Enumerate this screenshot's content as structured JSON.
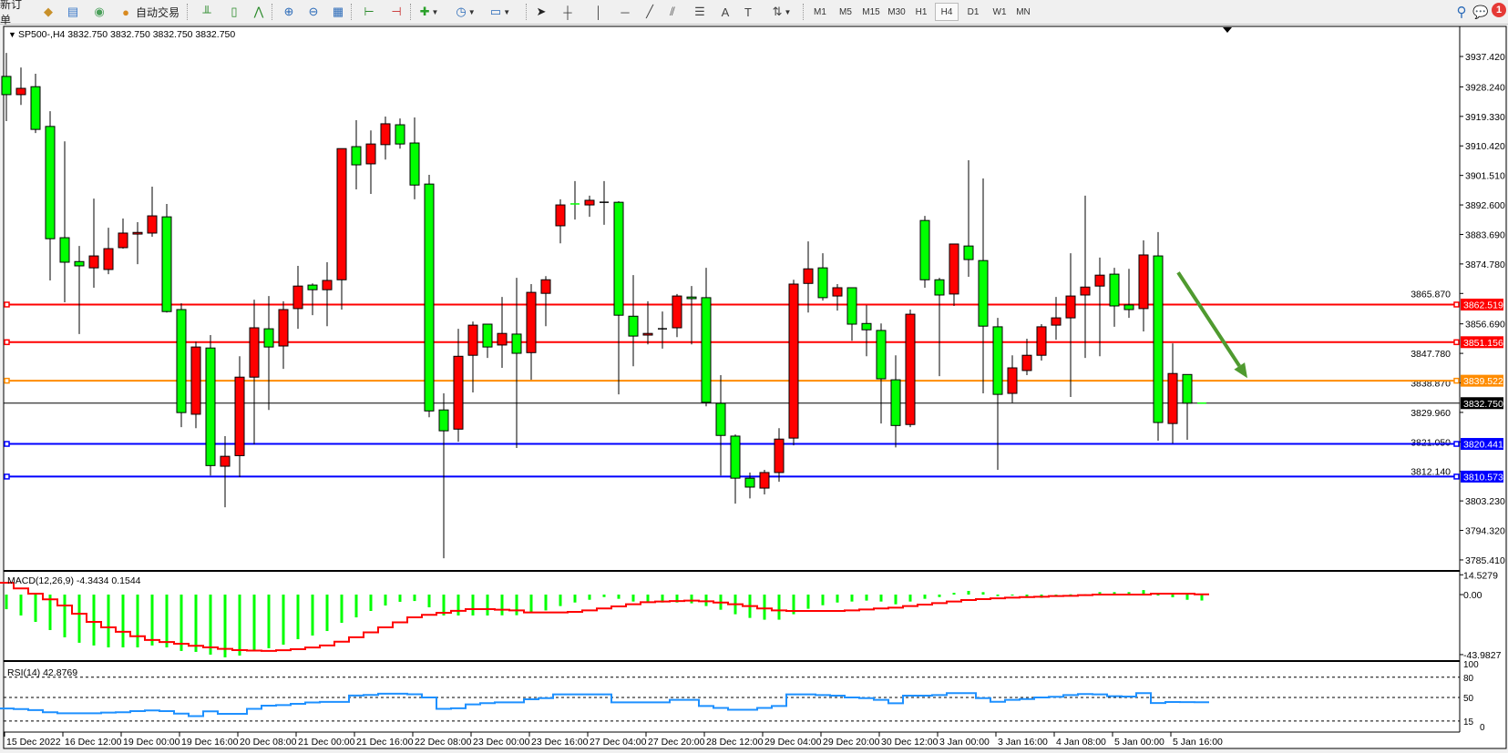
{
  "toolbar": {
    "new_order_label": "新订单",
    "auto_trading_label": "自动交易",
    "buttons": [
      {
        "icon": "market-watch-icon",
        "glyph": "◆",
        "color": "#c8902a"
      },
      {
        "icon": "data-window-icon",
        "glyph": "▤",
        "color": "#3a78c8"
      },
      {
        "icon": "navigator-icon",
        "glyph": "◉",
        "color": "#4aa05a"
      },
      {
        "icon": "auto-trading-icon",
        "glyph": "●",
        "color": "#d88a20"
      },
      {
        "icon": "bar-chart-icon",
        "glyph": "╨",
        "color": "#2a8a2a"
      },
      {
        "icon": "candlestick-chart-icon",
        "glyph": "▯",
        "color": "#2a8a2a"
      },
      {
        "icon": "line-chart-icon",
        "glyph": "⋀",
        "color": "#2a8a2a"
      },
      {
        "icon": "zoom-in-icon",
        "glyph": "⊕",
        "color": "#2a6ab8"
      },
      {
        "icon": "zoom-out-icon",
        "glyph": "⊖",
        "color": "#2a6ab8"
      },
      {
        "icon": "tile-windows-icon",
        "glyph": "▦",
        "color": "#2a6ab8"
      },
      {
        "icon": "auto-scroll-icon",
        "glyph": "⊢",
        "color": "#2a8a2a"
      },
      {
        "icon": "chart-shift-icon",
        "glyph": "⊣",
        "color": "#c82a2a"
      },
      {
        "icon": "indicators-icon",
        "glyph": "✚",
        "color": "#2aa02a",
        "dropdown": true
      },
      {
        "icon": "periods-clock-icon",
        "glyph": "◷",
        "color": "#2a6ab8",
        "dropdown": true
      },
      {
        "icon": "templates-icon",
        "glyph": "▭",
        "color": "#2a6ab8",
        "dropdown": true
      },
      {
        "icon": "cursor-icon",
        "glyph": "➤",
        "color": "#222"
      },
      {
        "icon": "crosshair-icon",
        "glyph": "┼",
        "color": "#444"
      },
      {
        "icon": "vertical-line-icon",
        "glyph": "│",
        "color": "#444"
      },
      {
        "icon": "horizontal-line-icon",
        "glyph": "─",
        "color": "#444"
      },
      {
        "icon": "trendline-icon",
        "glyph": "╱",
        "color": "#444"
      },
      {
        "icon": "equidistant-channel-icon",
        "glyph": "⫽",
        "color": "#444"
      },
      {
        "icon": "fibonacci-icon",
        "glyph": "☰",
        "color": "#444"
      },
      {
        "icon": "text-icon",
        "glyph": "A",
        "color": "#444"
      },
      {
        "icon": "text-label-icon",
        "glyph": "T",
        "color": "#444"
      },
      {
        "icon": "arrows-icon",
        "glyph": "⇅",
        "color": "#444",
        "dropdown": true
      }
    ],
    "timeframes": [
      "M1",
      "M5",
      "M15",
      "M30",
      "H1",
      "H4",
      "D1",
      "W1",
      "MN"
    ],
    "active_timeframe": "H4",
    "search_icon": "search-icon",
    "notification_icon": "notification-icon",
    "notification_count": "1"
  },
  "chart_data": {
    "type": "candlestick",
    "title": "SP500-,H4  3832.750 3832.750 3832.750 3832.750",
    "symbol": "SP500-",
    "timeframe": "H4",
    "bull_color": "#ff0000",
    "bear_color": "#00ff00",
    "ylim": [
      3782.1,
      3946.5
    ],
    "price_ticks": [
      "3937.420",
      "3928.240",
      "3919.330",
      "3910.420",
      "3901.510",
      "3892.600",
      "3883.690",
      "3874.780",
      "3865.870",
      "3856.690",
      "3847.780",
      "3838.870",
      "3829.960",
      "3821.050",
      "3812.140",
      "3803.230",
      "3794.320",
      "3785.410"
    ],
    "bid_price": {
      "value": 3832.75,
      "label": "3832.750",
      "color": "#000000"
    },
    "levels": [
      {
        "value": 3862.519,
        "label": "3862.519",
        "color": "#ff0000"
      },
      {
        "value": 3851.156,
        "label": "3851.156",
        "color": "#ff0000"
      },
      {
        "value": 3839.522,
        "label": "3839.522",
        "color": "#ff8c00"
      },
      {
        "value": 3820.441,
        "label": "3820.441",
        "color": "#0000ff"
      },
      {
        "value": 3810.573,
        "label": "3810.573",
        "color": "#0000ff"
      }
    ],
    "annotation_arrow": {
      "color": "#4f9a2f",
      "direction": "down",
      "from_price": 3872.2,
      "to_price": 3840.3
    },
    "date_labels": [
      "15 Dec 2022",
      "16 Dec 12:00",
      "19 Dec 00:00",
      "19 Dec 16:00",
      "20 Dec 08:00",
      "21 Dec 00:00",
      "21 Dec 16:00",
      "22 Dec 08:00",
      "23 Dec 00:00",
      "23 Dec 16:00",
      "27 Dec 04:00",
      "27 Dec 20:00",
      "28 Dec 12:00",
      "29 Dec 04:00",
      "29 Dec 20:00",
      "30 Dec 12:00",
      "3 Jan 00:00",
      "3 Jan 16:00",
      "4 Jan 08:00",
      "5 Jan 00:00",
      "5 Jan 16:00"
    ],
    "ohlc": [
      [
        3931.4,
        3938.5,
        3917.9,
        3925.9
      ],
      [
        3925.9,
        3934.1,
        3922.8,
        3927.8
      ],
      [
        3928.3,
        3932.2,
        3914.3,
        3915.4
      ],
      [
        3916.3,
        3920.9,
        3869.8,
        3882.4
      ],
      [
        3882.7,
        3911.8,
        3863.2,
        3875.3
      ],
      [
        3875.5,
        3880.2,
        3853.6,
        3874.2
      ],
      [
        3873.6,
        3894.5,
        3867.6,
        3877.2
      ],
      [
        3873.1,
        3885.7,
        3871.7,
        3879.4
      ],
      [
        3879.7,
        3888.5,
        3879.4,
        3884.1
      ],
      [
        3883.8,
        3887.4,
        3874.7,
        3884.3
      ],
      [
        3884.1,
        3898.1,
        3883.0,
        3889.3
      ],
      [
        3889.0,
        3892.9,
        3860.1,
        3860.4
      ],
      [
        3861.0,
        3862.9,
        3825.5,
        3829.9
      ],
      [
        3829.4,
        3851.3,
        3825.2,
        3849.7
      ],
      [
        3849.4,
        3853.3,
        3810.9,
        3813.9
      ],
      [
        3813.7,
        3822.8,
        3801.3,
        3816.7
      ],
      [
        3816.9,
        3846.9,
        3810.4,
        3840.6
      ],
      [
        3840.6,
        3864.0,
        3820.3,
        3855.5
      ],
      [
        3855.2,
        3865.1,
        3830.7,
        3849.7
      ],
      [
        3850.0,
        3863.5,
        3843.1,
        3861.0
      ],
      [
        3861.3,
        3874.2,
        3855.2,
        3868.1
      ],
      [
        3868.4,
        3868.9,
        3859.3,
        3867.0
      ],
      [
        3867.0,
        3875.3,
        3856.0,
        3869.8
      ],
      [
        3870.0,
        3909.6,
        3861.0,
        3909.6
      ],
      [
        3910.2,
        3918.2,
        3897.3,
        3904.7
      ],
      [
        3905.0,
        3915.1,
        3895.9,
        3911.0
      ],
      [
        3910.8,
        3919.3,
        3906.3,
        3917.1
      ],
      [
        3916.8,
        3918.7,
        3909.6,
        3911.0
      ],
      [
        3911.3,
        3919.0,
        3894.3,
        3898.6
      ],
      [
        3898.9,
        3901.7,
        3828.5,
        3830.4
      ],
      [
        3830.7,
        3835.7,
        3785.9,
        3824.4
      ],
      [
        3824.9,
        3855.2,
        3821.1,
        3846.9
      ],
      [
        3847.2,
        3857.4,
        3836.0,
        3856.3
      ],
      [
        3856.6,
        3856.6,
        3846.4,
        3849.7
      ],
      [
        3850.3,
        3864.8,
        3843.4,
        3853.8
      ],
      [
        3853.6,
        3870.6,
        3819.2,
        3847.8
      ],
      [
        3848.0,
        3868.7,
        3839.8,
        3866.2
      ],
      [
        3865.9,
        3871.1,
        3856.0,
        3870.0
      ],
      [
        3886.3,
        3894.3,
        3881.0,
        3892.6
      ],
      [
        3892.9,
        3899.8,
        3888.2,
        3892.9
      ],
      [
        3892.6,
        3895.4,
        3889.0,
        3894.0
      ],
      [
        3893.4,
        3899.8,
        3886.6,
        3893.4
      ],
      [
        3893.4,
        3893.7,
        3835.4,
        3859.3
      ],
      [
        3859.0,
        3871.4,
        3843.9,
        3853.0
      ],
      [
        3853.3,
        3863.5,
        3850.5,
        3853.8
      ],
      [
        3855.2,
        3860.4,
        3849.2,
        3855.2
      ],
      [
        3855.5,
        3865.7,
        3852.7,
        3865.1
      ],
      [
        3864.8,
        3868.1,
        3850.5,
        3864.3
      ],
      [
        3864.6,
        3873.6,
        3831.8,
        3833.0
      ],
      [
        3832.7,
        3841.2,
        3810.9,
        3823.0
      ],
      [
        3822.8,
        3823.3,
        3802.4,
        3810.1
      ],
      [
        3810.1,
        3811.8,
        3804.0,
        3807.4
      ],
      [
        3807.1,
        3812.6,
        3805.2,
        3811.8
      ],
      [
        3811.8,
        3825.2,
        3809.0,
        3821.9
      ],
      [
        3822.2,
        3870.0,
        3820.0,
        3868.7
      ],
      [
        3868.9,
        3881.6,
        3860.1,
        3873.3
      ],
      [
        3873.6,
        3878.0,
        3863.7,
        3864.6
      ],
      [
        3865.1,
        3868.7,
        3860.7,
        3867.6
      ],
      [
        3867.6,
        3867.6,
        3851.6,
        3856.6
      ],
      [
        3856.8,
        3862.3,
        3846.9,
        3854.9
      ],
      [
        3854.7,
        3856.8,
        3826.6,
        3840.1
      ],
      [
        3839.8,
        3847.2,
        3819.4,
        3826.0
      ],
      [
        3826.3,
        3861.0,
        3825.5,
        3859.6
      ],
      [
        3887.9,
        3889.3,
        3867.6,
        3870.0
      ],
      [
        3870.0,
        3870.6,
        3840.9,
        3865.4
      ],
      [
        3865.7,
        3880.8,
        3862.1,
        3880.8
      ],
      [
        3880.2,
        3906.1,
        3870.9,
        3876.1
      ],
      [
        3875.8,
        3900.6,
        3835.7,
        3856.0
      ],
      [
        3855.8,
        3858.5,
        3812.6,
        3835.4
      ],
      [
        3835.7,
        3847.2,
        3832.9,
        3843.4
      ],
      [
        3842.6,
        3852.2,
        3841.2,
        3847.2
      ],
      [
        3847.2,
        3856.6,
        3845.6,
        3855.8
      ],
      [
        3856.3,
        3864.8,
        3851.9,
        3858.5
      ],
      [
        3858.5,
        3878.0,
        3834.6,
        3865.1
      ],
      [
        3865.4,
        3895.4,
        3846.4,
        3867.8
      ],
      [
        3868.1,
        3876.7,
        3846.9,
        3871.4
      ],
      [
        3871.7,
        3873.6,
        3855.8,
        3862.1
      ],
      [
        3862.4,
        3873.3,
        3858.5,
        3861.0
      ],
      [
        3861.3,
        3881.9,
        3854.4,
        3877.5
      ],
      [
        3877.2,
        3884.4,
        3821.4,
        3826.9
      ],
      [
        3826.6,
        3850.8,
        3820.6,
        3841.7
      ],
      [
        3841.4,
        3841.4,
        3821.7,
        3832.75
      ],
      [
        3832.75,
        3832.75,
        3832.75,
        3832.75
      ]
    ]
  },
  "macd": {
    "label": "MACD(12,26,9) -4.3434 0.1544",
    "ylim": [
      -48.7,
      16.7
    ],
    "tick_labels": [
      {
        "value": 14.5279,
        "label": "14.5279"
      },
      {
        "value": 0,
        "label": "0.00"
      },
      {
        "value": -43.9827,
        "label": "-43.9827"
      }
    ],
    "main_color": "#00ff00",
    "signal_color": "#ff0000",
    "main": [
      -10.7,
      -15.3,
      -20,
      -26,
      -31.3,
      -35.3,
      -37.3,
      -38.7,
      -38.7,
      -38.7,
      -37.3,
      -38.7,
      -41.3,
      -42,
      -44,
      -46,
      -44.7,
      -40.7,
      -39.3,
      -36.7,
      -32.7,
      -30,
      -26.7,
      -20.7,
      -16.7,
      -12,
      -8,
      -5.3,
      -4.7,
      -9.3,
      -15.3,
      -15.3,
      -15.3,
      -15.3,
      -15.2,
      -15.1,
      -13.1,
      -11.6,
      -8.4,
      -5.8,
      -3.8,
      -1.8,
      -3.1,
      -5.1,
      -5.8,
      -5.8,
      -5.8,
      -6.4,
      -8.4,
      -11.1,
      -14.4,
      -17.1,
      -18.4,
      -18.4,
      -14.4,
      -10.4,
      -7.8,
      -5.8,
      -5.1,
      -4.4,
      -5.1,
      -7.1,
      -5.1,
      -3.1,
      -1.8,
      1.3,
      2.7,
      1.8,
      -1.1,
      -0.2,
      -2.4,
      -2.4,
      -1.6,
      0.2,
      0.2,
      1.8,
      1.8,
      1.8,
      3.3,
      -0.4,
      -2.0,
      -3.8,
      -4.3434
    ],
    "signal": [
      8.7,
      4.5,
      0.7,
      -3.5,
      -8,
      -14,
      -20,
      -24,
      -27.3,
      -30.5,
      -33.3,
      -34.8,
      -36,
      -37.5,
      -38.7,
      -39.8,
      -40.7,
      -41,
      -41.3,
      -40.8,
      -40,
      -38.8,
      -37.3,
      -34.5,
      -31.3,
      -27.7,
      -24,
      -20.3,
      -16.7,
      -14.8,
      -13.3,
      -11.9,
      -10.7,
      -10.7,
      -11.1,
      -11.6,
      -13.1,
      -13.1,
      -13.1,
      -12.7,
      -11.6,
      -10.2,
      -8.7,
      -7.1,
      -5.6,
      -5.1,
      -4.7,
      -4.4,
      -4.9,
      -5.8,
      -7.1,
      -8.4,
      -10.2,
      -11.6,
      -12.0,
      -12,
      -12,
      -12,
      -11.6,
      -10.9,
      -10.2,
      -9.6,
      -8.4,
      -7.3,
      -6.2,
      -5.1,
      -4.0,
      -3.3,
      -2.7,
      -2.2,
      -1.8,
      -1.6,
      -1.1,
      -0.9,
      -0.4,
      0,
      0,
      0,
      0,
      0.7,
      0.7,
      0.7,
      0.1544
    ]
  },
  "rsi": {
    "label": "RSI(14) 42.8769",
    "ylim": [
      0,
      100
    ],
    "tick_labels": [
      "100",
      "80",
      "50",
      "15",
      "0"
    ],
    "levels": [
      80,
      50,
      15
    ],
    "color": "#1e90ff",
    "values": [
      33.6,
      32.7,
      31.3,
      28,
      26.6,
      26.6,
      26.6,
      27.5,
      28,
      29.8,
      30.8,
      29.8,
      26,
      22.3,
      29.4,
      25.6,
      25.6,
      33.1,
      37.8,
      38.7,
      40.6,
      42.5,
      43.4,
      43.4,
      52.8,
      53.8,
      55.6,
      55.6,
      54.7,
      50,
      33.1,
      34,
      39.7,
      41.6,
      42.7,
      42.7,
      47.3,
      49,
      54.5,
      54.5,
      54.5,
      54.5,
      42.7,
      42.7,
      42.7,
      42.7,
      46.4,
      46.4,
      37.3,
      34.5,
      31.8,
      31.8,
      34.5,
      37.3,
      54.5,
      54.5,
      53.6,
      52.7,
      50,
      49,
      46.4,
      41.4,
      52.7,
      52.7,
      53.6,
      56.4,
      56.4,
      49,
      43.6,
      46.4,
      47.7,
      50,
      51,
      53.6,
      55,
      54.5,
      51.8,
      51.4,
      56.4,
      41.8,
      43.2,
      43,
      42.8769
    ]
  }
}
